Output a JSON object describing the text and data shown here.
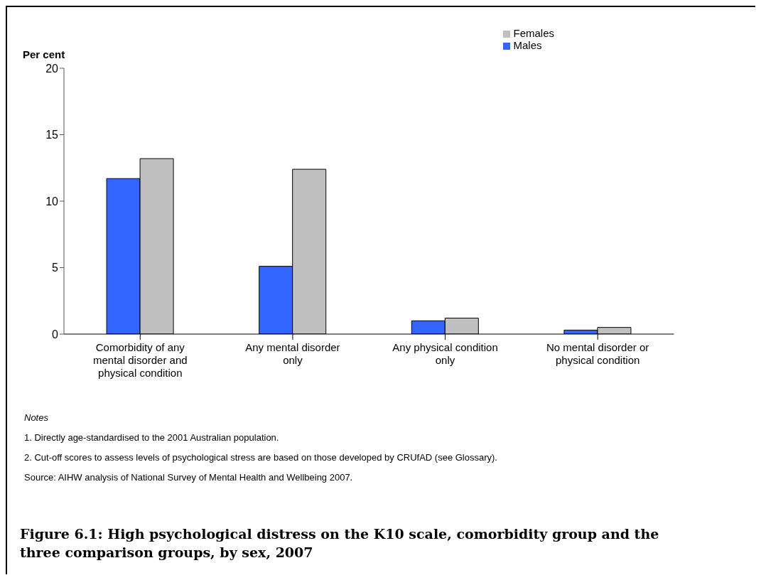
{
  "chart_data": {
    "type": "bar",
    "title": "Figure 6.1: High psychological distress on the K10 scale, comorbidity group and the three comparison groups, by sex, 2007",
    "ylabel": "Per cent",
    "categories": [
      "Comorbidity of any mental disorder and physical condition",
      "Any mental disorder only",
      "Any physical condition only",
      "No mental disorder or physical condition"
    ],
    "series": [
      {
        "name": "Males",
        "color": "#3366ff",
        "values": [
          11.7,
          5.1,
          1.0,
          0.3
        ]
      },
      {
        "name": "Females",
        "color": "#c0c0c0",
        "values": [
          13.2,
          12.4,
          1.2,
          0.5
        ]
      }
    ],
    "ylim": [
      0,
      20
    ],
    "yticks": [
      0,
      5,
      10,
      15,
      20
    ],
    "grid": false,
    "legend": "top right",
    "annotations": [
      "Notes",
      "1. Directly age-standardised to the 2001 Australian population.",
      "2. Cut-off scores to assess levels of psychological stress are based on those developed by CRUfAD (see Glossary).",
      "Source: AIHW analysis of National Survey of Mental Health and Wellbeing 2007."
    ]
  }
}
